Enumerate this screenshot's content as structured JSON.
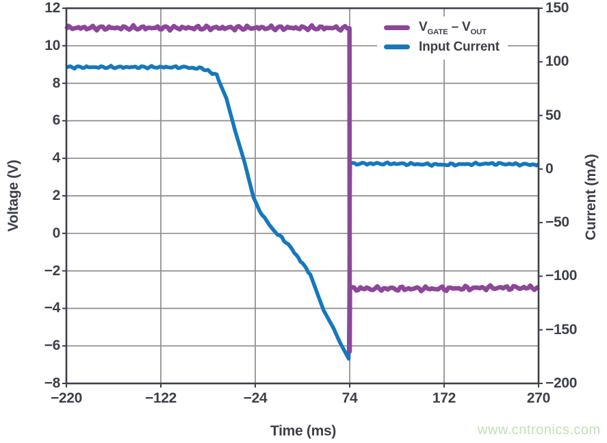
{
  "watermark": {
    "text": "www.cntronics.com",
    "color": "#bfe3b4"
  },
  "legend": {
    "vgate_vout": {
      "v1": "V",
      "sub1": "GATE",
      "mid": " – V",
      "sub2": "OUT"
    },
    "input_current": "Input Current"
  },
  "style": {
    "text_color": "#3d4049",
    "grid_color": "#8c8c8c",
    "frame_color": "#3d4049",
    "background": "#ffffff"
  },
  "chart_data": {
    "type": "line",
    "title": "",
    "xlabel": "Time (ms)",
    "ylabel_left": "Voltage (V)",
    "ylabel_right": "Current (mA)",
    "x_range": [
      -220,
      270
    ],
    "x_ticks": [
      -220,
      -122,
      -24,
      74,
      172,
      270
    ],
    "y_left_range": [
      -8,
      12
    ],
    "y_left_ticks": [
      12,
      10,
      8,
      6,
      4,
      2,
      0,
      -2,
      -4,
      -6,
      -8
    ],
    "y_right_range": [
      -200,
      150
    ],
    "y_right_ticks": [
      150,
      100,
      50,
      0,
      -50,
      -100,
      -150,
      -200
    ],
    "grid": true,
    "legend_position": "top-right",
    "series": [
      {
        "name": "V_GATE − V_OUT",
        "axis": "left",
        "unit": "V",
        "color": "#8c4799",
        "points": [
          [
            -220,
            10.95
          ],
          [
            -180,
            10.95
          ],
          [
            -140,
            10.95
          ],
          [
            -100,
            10.95
          ],
          [
            -60,
            10.95
          ],
          [
            -20,
            10.95
          ],
          [
            20,
            10.95
          ],
          [
            60,
            10.95
          ],
          [
            73.8,
            10.95
          ],
          [
            74,
            -6.3
          ],
          [
            74.3,
            -2.95
          ],
          [
            120,
            -2.95
          ],
          [
            170,
            -2.95
          ],
          [
            220,
            -2.9
          ],
          [
            270,
            -2.9
          ]
        ]
      },
      {
        "name": "Input Current",
        "axis": "right",
        "unit": "mA",
        "color": "#1578bd",
        "points": [
          [
            -220,
            95
          ],
          [
            -180,
            95
          ],
          [
            -140,
            95
          ],
          [
            -100,
            95
          ],
          [
            -82,
            94
          ],
          [
            -73,
            92
          ],
          [
            -64,
            87
          ],
          [
            -54,
            66
          ],
          [
            -45,
            36
          ],
          [
            -35,
            6
          ],
          [
            -26,
            -26
          ],
          [
            -19,
            -40
          ],
          [
            -12,
            -49
          ],
          [
            -5,
            -57
          ],
          [
            10,
            -70
          ],
          [
            25,
            -88
          ],
          [
            33,
            -98
          ],
          [
            47,
            -132
          ],
          [
            57,
            -148
          ],
          [
            64,
            -162
          ],
          [
            70,
            -172
          ],
          [
            73,
            -176
          ],
          [
            74.5,
            5
          ],
          [
            120,
            5
          ],
          [
            170,
            4
          ],
          [
            220,
            5
          ],
          [
            270,
            4
          ]
        ]
      }
    ]
  }
}
